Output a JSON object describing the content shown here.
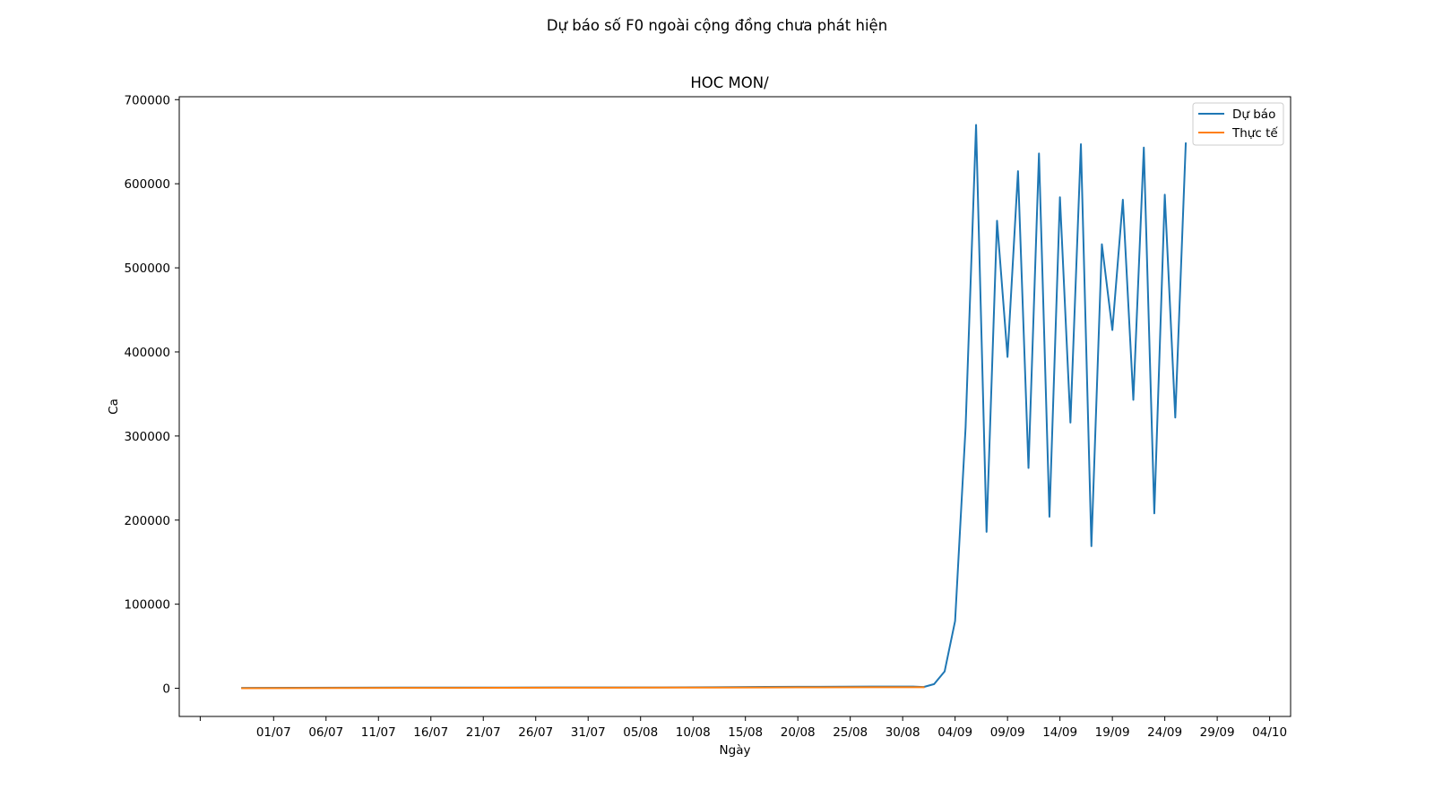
{
  "chart_data": {
    "type": "line",
    "suptitle": "Dự báo số F0 ngoài cộng đồng chưa phát hiện",
    "title": "HOC MON/",
    "xlabel": "Ngày",
    "ylabel": "Ca",
    "x_start": "2021-06-28",
    "xlim": [
      "2021-06-22",
      "2021-10-06"
    ],
    "ylim": [
      -33500,
      703500
    ],
    "x_ticks": [
      {
        "date": "2021-06-24",
        "label": ""
      },
      {
        "date": "2021-07-01",
        "label": "01/07"
      },
      {
        "date": "2021-07-06",
        "label": "06/07"
      },
      {
        "date": "2021-07-11",
        "label": "11/07"
      },
      {
        "date": "2021-07-16",
        "label": "16/07"
      },
      {
        "date": "2021-07-21",
        "label": "21/07"
      },
      {
        "date": "2021-07-26",
        "label": "26/07"
      },
      {
        "date": "2021-07-31",
        "label": "31/07"
      },
      {
        "date": "2021-08-05",
        "label": "05/08"
      },
      {
        "date": "2021-08-10",
        "label": "10/08"
      },
      {
        "date": "2021-08-15",
        "label": "15/08"
      },
      {
        "date": "2021-08-20",
        "label": "20/08"
      },
      {
        "date": "2021-08-25",
        "label": "25/08"
      },
      {
        "date": "2021-08-30",
        "label": "30/08"
      },
      {
        "date": "2021-09-04",
        "label": "04/09"
      },
      {
        "date": "2021-09-09",
        "label": "09/09"
      },
      {
        "date": "2021-09-14",
        "label": "14/09"
      },
      {
        "date": "2021-09-19",
        "label": "19/09"
      },
      {
        "date": "2021-09-24",
        "label": "24/09"
      },
      {
        "date": "2021-09-29",
        "label": "29/09"
      },
      {
        "date": "2021-10-04",
        "label": "04/10"
      }
    ],
    "y_ticks": [
      0,
      100000,
      200000,
      300000,
      400000,
      500000,
      600000,
      700000
    ],
    "y_tick_labels": [
      "0",
      "100000",
      "200000",
      "300000",
      "400000",
      "500000",
      "600000",
      "700000"
    ],
    "legend_position": "upper right",
    "series": [
      {
        "name": "Dự báo",
        "color": "#1f77b4",
        "points": [
          [
            "2021-06-28",
            500
          ],
          [
            "2021-07-03",
            600
          ],
          [
            "2021-07-08",
            700
          ],
          [
            "2021-07-13",
            800
          ],
          [
            "2021-07-18",
            900
          ],
          [
            "2021-07-23",
            900
          ],
          [
            "2021-07-28",
            1000
          ],
          [
            "2021-08-02",
            1000
          ],
          [
            "2021-08-07",
            1000
          ],
          [
            "2021-08-12",
            1200
          ],
          [
            "2021-08-17",
            1600
          ],
          [
            "2021-08-22",
            1800
          ],
          [
            "2021-08-27",
            2000
          ],
          [
            "2021-08-31",
            2000
          ],
          [
            "2021-09-01",
            1500
          ],
          [
            "2021-09-02",
            5000
          ],
          [
            "2021-09-03",
            20000
          ],
          [
            "2021-09-04",
            80000
          ],
          [
            "2021-09-05",
            310000
          ],
          [
            "2021-09-06",
            670000
          ],
          [
            "2021-09-07",
            186000
          ],
          [
            "2021-09-08",
            556000
          ],
          [
            "2021-09-09",
            394000
          ],
          [
            "2021-09-10",
            615000
          ],
          [
            "2021-09-11",
            262000
          ],
          [
            "2021-09-12",
            636000
          ],
          [
            "2021-09-13",
            204000
          ],
          [
            "2021-09-14",
            584000
          ],
          [
            "2021-09-15",
            316000
          ],
          [
            "2021-09-16",
            647000
          ],
          [
            "2021-09-17",
            169000
          ],
          [
            "2021-09-18",
            528000
          ],
          [
            "2021-09-19",
            426000
          ],
          [
            "2021-09-20",
            581000
          ],
          [
            "2021-09-21",
            343000
          ],
          [
            "2021-09-22",
            643000
          ],
          [
            "2021-09-23",
            208000
          ],
          [
            "2021-09-24",
            587000
          ],
          [
            "2021-09-25",
            322000
          ],
          [
            "2021-09-26",
            648000
          ]
        ]
      },
      {
        "name": "Thực tế",
        "color": "#ff7f0e",
        "points": [
          [
            "2021-06-28",
            100
          ],
          [
            "2021-07-03",
            200
          ],
          [
            "2021-07-08",
            300
          ],
          [
            "2021-07-13",
            400
          ],
          [
            "2021-07-18",
            500
          ],
          [
            "2021-07-23",
            600
          ],
          [
            "2021-07-28",
            700
          ],
          [
            "2021-08-02",
            700
          ],
          [
            "2021-08-07",
            800
          ],
          [
            "2021-08-12",
            900
          ],
          [
            "2021-08-17",
            1000
          ],
          [
            "2021-08-22",
            1100
          ],
          [
            "2021-08-27",
            1200
          ],
          [
            "2021-09-01",
            1300
          ]
        ]
      }
    ]
  }
}
